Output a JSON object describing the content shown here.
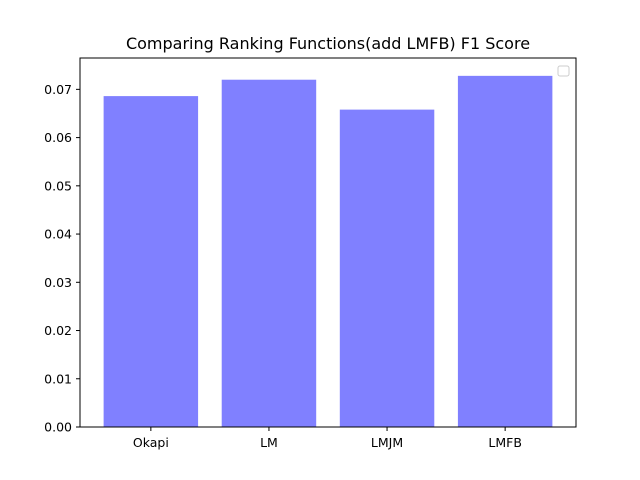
{
  "chart_data": {
    "type": "bar",
    "title": "Comparing Ranking Functions(add LMFB) F1 Score",
    "xlabel": "",
    "ylabel": "",
    "categories": [
      "Okapi",
      "LM",
      "LMJM",
      "LMFB"
    ],
    "values": [
      0.0686,
      0.072,
      0.0658,
      0.0728
    ],
    "ylim": [
      0,
      0.0765
    ],
    "yticks": [
      "0.00",
      "0.01",
      "0.02",
      "0.03",
      "0.04",
      "0.05",
      "0.06",
      "0.07"
    ],
    "bar_color": "#8080ff",
    "legend": {
      "placement": "top-right",
      "entries": []
    },
    "grid": false
  }
}
